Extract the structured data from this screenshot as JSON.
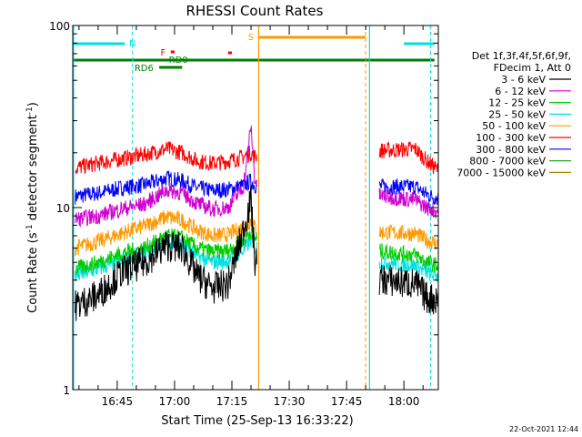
{
  "chart_data": {
    "type": "line",
    "title": "RHESSI Count Rates",
    "xlabel": "Start Time (25-Sep-13 16:33:22)",
    "ylabel": "Count Rate (s⁻¹ detector segment⁻¹)",
    "yscale": "log",
    "ylim": [
      1,
      100
    ],
    "xlim": [
      "16:33:22",
      "18:09:00"
    ],
    "x_tick_labels": [
      "16:45",
      "17:00",
      "17:15",
      "17:30",
      "17:45",
      "18:00"
    ],
    "y_tick_labels": [
      "1",
      "10",
      "100"
    ],
    "x_ticks_minutes": [
      45,
      60,
      75,
      90,
      105,
      120
    ],
    "legend_header": [
      "Det 1f,3f,4f,5f,6f,9f,",
      "FDecim 1, Att 0"
    ],
    "series": [
      {
        "name": "3 - 6 keV",
        "color": "#000000",
        "x": [
          "16:34",
          "16:40",
          "16:46",
          "16:52",
          "16:58",
          "17:02",
          "17:06",
          "17:10",
          "17:14",
          "17:18",
          "17:20",
          "17:21",
          "18:03",
          "18:06",
          "18:09"
        ],
        "values": [
          2.9,
          3.3,
          4.4,
          5.0,
          6.2,
          6.0,
          4.2,
          3.6,
          3.8,
          7.5,
          11.0,
          5.0,
          3.8,
          3.2,
          3.1
        ]
      },
      {
        "name": "6 - 12 keV",
        "color": "#d000d0",
        "x": [
          "16:34",
          "16:40",
          "16:46",
          "16:52",
          "16:58",
          "17:02",
          "17:06",
          "17:10",
          "17:14",
          "17:18",
          "17:20",
          "17:21",
          "18:03",
          "18:06",
          "18:09"
        ],
        "values": [
          8.6,
          9.0,
          9.8,
          10.4,
          12.5,
          12.0,
          10.5,
          9.8,
          10.0,
          13.0,
          28.0,
          14.0,
          11.0,
          10.0,
          9.5
        ]
      },
      {
        "name": "12 - 25 keV",
        "color": "#00cc00",
        "x": [
          "16:34",
          "16:40",
          "16:46",
          "16:52",
          "16:58",
          "17:02",
          "17:06",
          "17:10",
          "17:14",
          "17:18",
          "17:20",
          "17:21",
          "18:03",
          "18:06",
          "18:09"
        ],
        "values": [
          4.6,
          5.0,
          5.6,
          6.0,
          7.0,
          6.8,
          6.0,
          5.7,
          5.8,
          6.6,
          7.5,
          6.8,
          5.5,
          5.0,
          4.8
        ]
      },
      {
        "name": "25 - 50 keV",
        "color": "#00e0e0",
        "x": [
          "16:34",
          "16:40",
          "16:46",
          "16:52",
          "16:58",
          "17:02",
          "17:06",
          "17:10",
          "17:14",
          "17:18",
          "17:20",
          "17:21",
          "18:03",
          "18:06",
          "18:09"
        ],
        "values": [
          4.2,
          4.6,
          5.1,
          5.6,
          6.7,
          6.3,
          5.4,
          5.0,
          5.1,
          5.8,
          6.6,
          6.0,
          4.8,
          4.4,
          4.2
        ]
      },
      {
        "name": "50 - 100 keV",
        "color": "#ff9900",
        "x": [
          "16:34",
          "16:40",
          "16:46",
          "16:52",
          "16:58",
          "17:02",
          "17:06",
          "17:10",
          "17:14",
          "17:18",
          "17:20",
          "17:21",
          "18:03",
          "18:06",
          "18:09"
        ],
        "values": [
          6.0,
          6.5,
          7.2,
          7.9,
          8.9,
          8.5,
          7.5,
          7.0,
          7.1,
          7.8,
          8.5,
          7.8,
          7.2,
          6.6,
          6.3
        ]
      },
      {
        "name": "100 - 300 keV",
        "color": "#ff0000",
        "x": [
          "16:34",
          "16:40",
          "16:46",
          "16:52",
          "16:58",
          "17:02",
          "17:06",
          "17:10",
          "17:14",
          "17:18",
          "17:20",
          "17:21",
          "18:03",
          "18:06",
          "18:09"
        ],
        "values": [
          16.5,
          17.5,
          18.5,
          19.5,
          21.0,
          20.0,
          18.0,
          17.5,
          18.0,
          19.0,
          20.0,
          19.0,
          21.0,
          18.0,
          16.0
        ]
      },
      {
        "name": "300 - 800 keV",
        "color": "#0000ff",
        "x": [
          "16:34",
          "16:40",
          "16:46",
          "16:52",
          "16:58",
          "17:02",
          "17:06",
          "17:10",
          "17:14",
          "17:18",
          "17:20",
          "17:21",
          "18:03",
          "18:06",
          "18:09"
        ],
        "values": [
          11.5,
          12.0,
          12.8,
          13.3,
          14.5,
          14.0,
          12.8,
          12.4,
          12.6,
          13.2,
          14.0,
          13.2,
          13.0,
          11.8,
          11.2
        ]
      },
      {
        "name": "800 - 7000 keV",
        "color": "#22aa22",
        "x": [],
        "values": []
      },
      {
        "name": "7000 - 15000 keV",
        "color": "#b08000",
        "x": [],
        "values": []
      }
    ],
    "annotations": {
      "labels": [
        {
          "text": "N",
          "color": "#00e0e0"
        },
        {
          "text": "F",
          "color": "#ff0000"
        },
        {
          "text": "RD0",
          "color": "#008000"
        },
        {
          "text": "RD6",
          "color": "#008000"
        },
        {
          "text": "S",
          "color": "#ff9900"
        }
      ]
    }
  },
  "timestamp": "22-Oct-2021 12:44"
}
